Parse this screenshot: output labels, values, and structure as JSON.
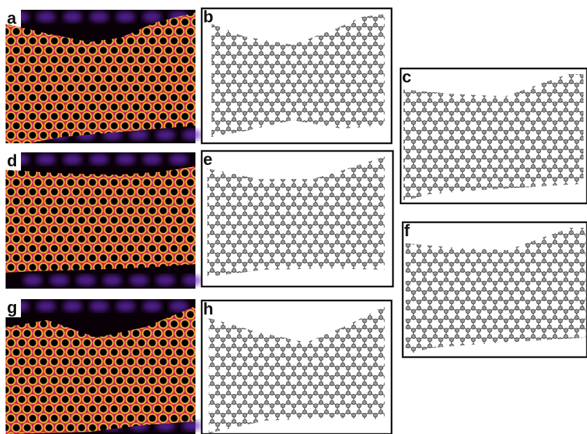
{
  "panels": [
    {
      "label": "a"
    },
    {
      "label": "b"
    },
    {
      "label": "c"
    },
    {
      "label": "d"
    },
    {
      "label": "e"
    },
    {
      "label": "f"
    },
    {
      "label": "g"
    },
    {
      "label": "h"
    }
  ]
}
